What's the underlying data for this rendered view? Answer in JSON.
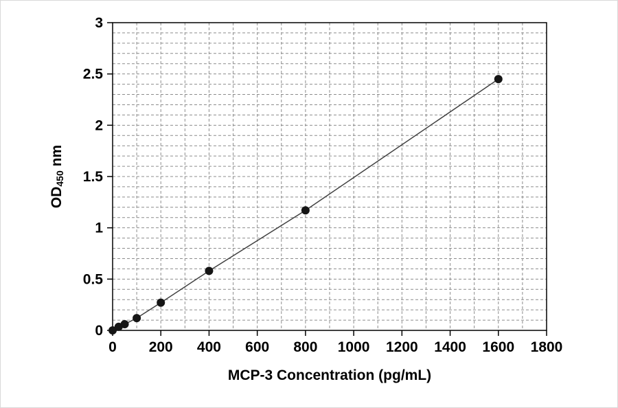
{
  "chart_data": {
    "type": "scatter",
    "title": "",
    "xlabel": "MCP-3 Concentration (pg/mL)",
    "ylabel_prefix": "OD",
    "ylabel_sub": "450",
    "ylabel_suffix": " nm",
    "x": [
      0,
      25,
      50,
      100,
      200,
      400,
      800,
      1600
    ],
    "y": [
      0.0,
      0.035,
      0.06,
      0.12,
      0.27,
      0.58,
      1.17,
      2.45
    ],
    "xlim": [
      0,
      1800
    ],
    "ylim": [
      0,
      3
    ],
    "x_tick_values": [
      0,
      200,
      400,
      600,
      800,
      1000,
      1200,
      1400,
      1600,
      1800
    ],
    "x_tick_labels": [
      "0",
      "200",
      "400",
      "600",
      "800",
      "1000",
      "1200",
      "1400",
      "1600",
      "1800"
    ],
    "y_tick_values": [
      0,
      0.5,
      1,
      1.5,
      2,
      2.5,
      3
    ],
    "y_tick_labels": [
      "0",
      "0.5",
      "1",
      "1.5",
      "2",
      "2.5",
      "3"
    ],
    "grid": {
      "x_minor_step": 100,
      "y_minor_step": 0.1,
      "style": "dashed",
      "color": "#8c8c8c"
    },
    "legend": "none",
    "line_color": "#404040",
    "marker_color": "#151515",
    "axis_color": "#000000",
    "text_color": "#000000"
  }
}
